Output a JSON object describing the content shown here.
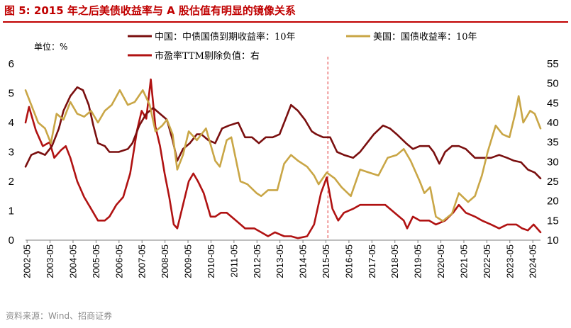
{
  "title": "图 5:   2015 年之后美债收益率与 A 股估值有明显的镜像关系",
  "source": "资料来源：Wind、招商证券",
  "colors": {
    "china": "#7a0f0f",
    "us": "#c9a646",
    "pe": "#b01212",
    "title": "#c00000",
    "marker": "#e03030"
  },
  "chart_data": {
    "type": "line",
    "unit_label": "单位：%",
    "x_tick_labels": [
      "2002-05",
      "2003-05",
      "2004-05",
      "2005-05",
      "2006-05",
      "2007-05",
      "2008-05",
      "2009-05",
      "2010-05",
      "2011-05",
      "2012-05",
      "2013-05",
      "2014-05",
      "2015-05",
      "2016-05",
      "2017-05",
      "2018-05",
      "2019-05",
      "2020-05",
      "2021-05",
      "2022-05",
      "2023-05",
      "2024-05"
    ],
    "x_range": [
      2002.35,
      2024.75
    ],
    "y_left": {
      "min": 0,
      "max": 6,
      "ticks": [
        "0",
        "1",
        "2",
        "3",
        "4",
        "5",
        "6"
      ]
    },
    "y_right": {
      "min": 10,
      "max": 55,
      "ticks": [
        "10",
        "15",
        "20",
        "25",
        "30",
        "35",
        "40",
        "45",
        "50",
        "55"
      ]
    },
    "vline_x": 2015.5,
    "series": [
      {
        "name": "中国：中债国债到期收益率：10年",
        "axis": "left",
        "points": [
          [
            2002.35,
            2.5
          ],
          [
            2002.6,
            2.9
          ],
          [
            2002.9,
            3.0
          ],
          [
            2003.2,
            2.9
          ],
          [
            2003.5,
            3.2
          ],
          [
            2003.8,
            3.8
          ],
          [
            2004.0,
            4.4
          ],
          [
            2004.3,
            4.9
          ],
          [
            2004.6,
            5.2
          ],
          [
            2004.85,
            5.1
          ],
          [
            2005.1,
            4.6
          ],
          [
            2005.3,
            3.9
          ],
          [
            2005.5,
            3.3
          ],
          [
            2005.8,
            3.2
          ],
          [
            2006.0,
            3.0
          ],
          [
            2006.4,
            3.0
          ],
          [
            2006.8,
            3.1
          ],
          [
            2007.0,
            3.3
          ],
          [
            2007.3,
            3.9
          ],
          [
            2007.6,
            4.3
          ],
          [
            2007.9,
            4.5
          ],
          [
            2008.2,
            4.3
          ],
          [
            2008.5,
            4.1
          ],
          [
            2008.75,
            3.4
          ],
          [
            2008.95,
            2.7
          ],
          [
            2009.2,
            3.1
          ],
          [
            2009.5,
            3.3
          ],
          [
            2009.8,
            3.6
          ],
          [
            2010.0,
            3.6
          ],
          [
            2010.3,
            3.4
          ],
          [
            2010.6,
            3.3
          ],
          [
            2010.9,
            3.8
          ],
          [
            2011.2,
            3.9
          ],
          [
            2011.6,
            4.0
          ],
          [
            2011.9,
            3.5
          ],
          [
            2012.2,
            3.5
          ],
          [
            2012.5,
            3.3
          ],
          [
            2012.8,
            3.5
          ],
          [
            2013.1,
            3.5
          ],
          [
            2013.4,
            3.6
          ],
          [
            2013.7,
            4.2
          ],
          [
            2013.9,
            4.6
          ],
          [
            2014.2,
            4.4
          ],
          [
            2014.5,
            4.1
          ],
          [
            2014.8,
            3.7
          ],
          [
            2015.0,
            3.6
          ],
          [
            2015.3,
            3.5
          ],
          [
            2015.6,
            3.5
          ],
          [
            2015.9,
            3.0
          ],
          [
            2016.2,
            2.9
          ],
          [
            2016.6,
            2.8
          ],
          [
            2016.9,
            3.0
          ],
          [
            2017.2,
            3.3
          ],
          [
            2017.5,
            3.6
          ],
          [
            2017.9,
            3.9
          ],
          [
            2018.2,
            3.8
          ],
          [
            2018.5,
            3.6
          ],
          [
            2018.9,
            3.3
          ],
          [
            2019.2,
            3.1
          ],
          [
            2019.5,
            3.2
          ],
          [
            2019.9,
            3.2
          ],
          [
            2020.1,
            3.0
          ],
          [
            2020.35,
            2.6
          ],
          [
            2020.6,
            3.0
          ],
          [
            2020.9,
            3.2
          ],
          [
            2021.2,
            3.2
          ],
          [
            2021.5,
            3.1
          ],
          [
            2021.9,
            2.8
          ],
          [
            2022.2,
            2.8
          ],
          [
            2022.6,
            2.8
          ],
          [
            2022.95,
            2.9
          ],
          [
            2023.3,
            2.8
          ],
          [
            2023.6,
            2.7
          ],
          [
            2023.9,
            2.65
          ],
          [
            2024.2,
            2.4
          ],
          [
            2024.5,
            2.3
          ],
          [
            2024.75,
            2.1
          ]
        ]
      },
      {
        "name": "美国：国债收益率：10年",
        "axis": "left",
        "points": [
          [
            2002.35,
            5.1
          ],
          [
            2002.6,
            4.6
          ],
          [
            2002.9,
            4.0
          ],
          [
            2003.2,
            3.8
          ],
          [
            2003.45,
            3.3
          ],
          [
            2003.7,
            4.3
          ],
          [
            2004.0,
            4.1
          ],
          [
            2004.3,
            4.7
          ],
          [
            2004.6,
            4.3
          ],
          [
            2004.9,
            4.2
          ],
          [
            2005.2,
            4.4
          ],
          [
            2005.5,
            4.0
          ],
          [
            2005.8,
            4.4
          ],
          [
            2006.1,
            4.6
          ],
          [
            2006.45,
            5.1
          ],
          [
            2006.8,
            4.6
          ],
          [
            2007.1,
            4.7
          ],
          [
            2007.45,
            5.1
          ],
          [
            2007.75,
            4.6
          ],
          [
            2008.0,
            3.7
          ],
          [
            2008.3,
            3.9
          ],
          [
            2008.5,
            4.1
          ],
          [
            2008.75,
            3.6
          ],
          [
            2008.95,
            2.4
          ],
          [
            2009.2,
            2.9
          ],
          [
            2009.45,
            3.7
          ],
          [
            2009.8,
            3.4
          ],
          [
            2010.2,
            3.8
          ],
          [
            2010.6,
            2.7
          ],
          [
            2010.8,
            2.5
          ],
          [
            2011.1,
            3.4
          ],
          [
            2011.3,
            3.5
          ],
          [
            2011.7,
            2.0
          ],
          [
            2012.0,
            1.9
          ],
          [
            2012.4,
            1.6
          ],
          [
            2012.6,
            1.5
          ],
          [
            2012.9,
            1.7
          ],
          [
            2013.3,
            1.7
          ],
          [
            2013.6,
            2.6
          ],
          [
            2013.9,
            2.9
          ],
          [
            2014.2,
            2.7
          ],
          [
            2014.6,
            2.5
          ],
          [
            2014.9,
            2.2
          ],
          [
            2015.1,
            1.9
          ],
          [
            2015.45,
            2.3
          ],
          [
            2015.8,
            2.1
          ],
          [
            2016.1,
            1.8
          ],
          [
            2016.5,
            1.5
          ],
          [
            2016.9,
            2.4
          ],
          [
            2017.3,
            2.3
          ],
          [
            2017.7,
            2.2
          ],
          [
            2018.1,
            2.8
          ],
          [
            2018.5,
            2.9
          ],
          [
            2018.8,
            3.1
          ],
          [
            2019.1,
            2.7
          ],
          [
            2019.5,
            2.0
          ],
          [
            2019.7,
            1.6
          ],
          [
            2019.95,
            1.8
          ],
          [
            2020.2,
            0.8
          ],
          [
            2020.5,
            0.65
          ],
          [
            2020.9,
            0.9
          ],
          [
            2021.2,
            1.6
          ],
          [
            2021.6,
            1.3
          ],
          [
            2021.9,
            1.5
          ],
          [
            2022.2,
            2.2
          ],
          [
            2022.45,
            3.0
          ],
          [
            2022.8,
            3.9
          ],
          [
            2023.1,
            3.6
          ],
          [
            2023.4,
            3.5
          ],
          [
            2023.65,
            4.3
          ],
          [
            2023.8,
            4.9
          ],
          [
            2024.0,
            4.0
          ],
          [
            2024.3,
            4.4
          ],
          [
            2024.5,
            4.3
          ],
          [
            2024.75,
            3.8
          ]
        ]
      },
      {
        "name": "市盈率TTM剔除负值：右",
        "axis": "right",
        "points": [
          [
            2002.35,
            40
          ],
          [
            2002.5,
            44
          ],
          [
            2002.8,
            38
          ],
          [
            2003.1,
            34
          ],
          [
            2003.4,
            35
          ],
          [
            2003.6,
            31
          ],
          [
            2003.9,
            33
          ],
          [
            2004.1,
            34
          ],
          [
            2004.3,
            31
          ],
          [
            2004.6,
            25
          ],
          [
            2004.9,
            21
          ],
          [
            2005.2,
            18
          ],
          [
            2005.5,
            15
          ],
          [
            2005.8,
            15
          ],
          [
            2006.0,
            16
          ],
          [
            2006.3,
            19
          ],
          [
            2006.6,
            21
          ],
          [
            2006.9,
            27
          ],
          [
            2007.2,
            38
          ],
          [
            2007.4,
            43
          ],
          [
            2007.6,
            41
          ],
          [
            2007.8,
            51
          ],
          [
            2008.0,
            39
          ],
          [
            2008.2,
            34
          ],
          [
            2008.4,
            27
          ],
          [
            2008.6,
            21
          ],
          [
            2008.8,
            14
          ],
          [
            2008.95,
            13
          ],
          [
            2009.2,
            19
          ],
          [
            2009.45,
            25
          ],
          [
            2009.65,
            27
          ],
          [
            2009.85,
            25
          ],
          [
            2010.1,
            22
          ],
          [
            2010.4,
            16
          ],
          [
            2010.6,
            16
          ],
          [
            2010.85,
            17
          ],
          [
            2011.1,
            17
          ],
          [
            2011.5,
            15
          ],
          [
            2011.9,
            13
          ],
          [
            2012.3,
            13
          ],
          [
            2012.6,
            12
          ],
          [
            2012.9,
            11
          ],
          [
            2013.2,
            12
          ],
          [
            2013.6,
            11
          ],
          [
            2013.9,
            11
          ],
          [
            2014.2,
            10.5
          ],
          [
            2014.6,
            11
          ],
          [
            2014.9,
            14
          ],
          [
            2015.2,
            22
          ],
          [
            2015.45,
            26
          ],
          [
            2015.7,
            18
          ],
          [
            2015.95,
            15
          ],
          [
            2016.2,
            17
          ],
          [
            2016.6,
            18
          ],
          [
            2016.9,
            19
          ],
          [
            2017.3,
            19
          ],
          [
            2017.7,
            19
          ],
          [
            2018.0,
            19
          ],
          [
            2018.4,
            17
          ],
          [
            2018.8,
            15
          ],
          [
            2018.95,
            13
          ],
          [
            2019.2,
            16
          ],
          [
            2019.5,
            15
          ],
          [
            2019.9,
            15
          ],
          [
            2020.2,
            14
          ],
          [
            2020.6,
            15
          ],
          [
            2020.95,
            17
          ],
          [
            2021.2,
            19
          ],
          [
            2021.5,
            17
          ],
          [
            2021.9,
            16
          ],
          [
            2022.2,
            15
          ],
          [
            2022.6,
            14
          ],
          [
            2022.95,
            13
          ],
          [
            2023.3,
            14
          ],
          [
            2023.7,
            14
          ],
          [
            2023.95,
            13
          ],
          [
            2024.2,
            12.5
          ],
          [
            2024.45,
            14
          ],
          [
            2024.75,
            12
          ]
        ]
      }
    ]
  }
}
